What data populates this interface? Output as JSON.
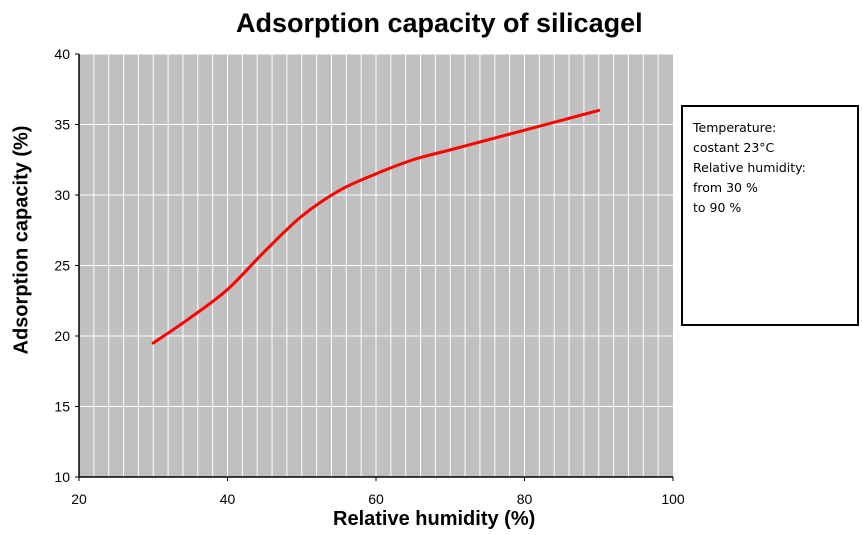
{
  "chart_data": {
    "type": "line",
    "title": "Adsorption capacity of silicagel",
    "xlabel": "Relative humidity (%)",
    "ylabel": "Adsorption capacity (%)",
    "xlim": [
      20,
      100
    ],
    "ylim": [
      10,
      40
    ],
    "xticks": [
      20,
      40,
      60,
      80,
      100
    ],
    "yticks": [
      10,
      15,
      20,
      25,
      30,
      35,
      40
    ],
    "grid": true,
    "background": "#c0c0c0",
    "series": [
      {
        "color": "#ff0000",
        "x": [
          30,
          35,
          40,
          45,
          50,
          55,
          60,
          65,
          70,
          75,
          80,
          85,
          90
        ],
        "y": [
          19.5,
          21.3,
          23.3,
          26.0,
          28.5,
          30.3,
          31.5,
          32.5,
          33.2,
          33.9,
          34.6,
          35.3,
          36.0
        ]
      }
    ]
  },
  "annotation": {
    "lines": [
      "Temperature:",
      "costant 23°C",
      "Relative  humidity:",
      "from 30 %",
      "to 90 %"
    ]
  }
}
